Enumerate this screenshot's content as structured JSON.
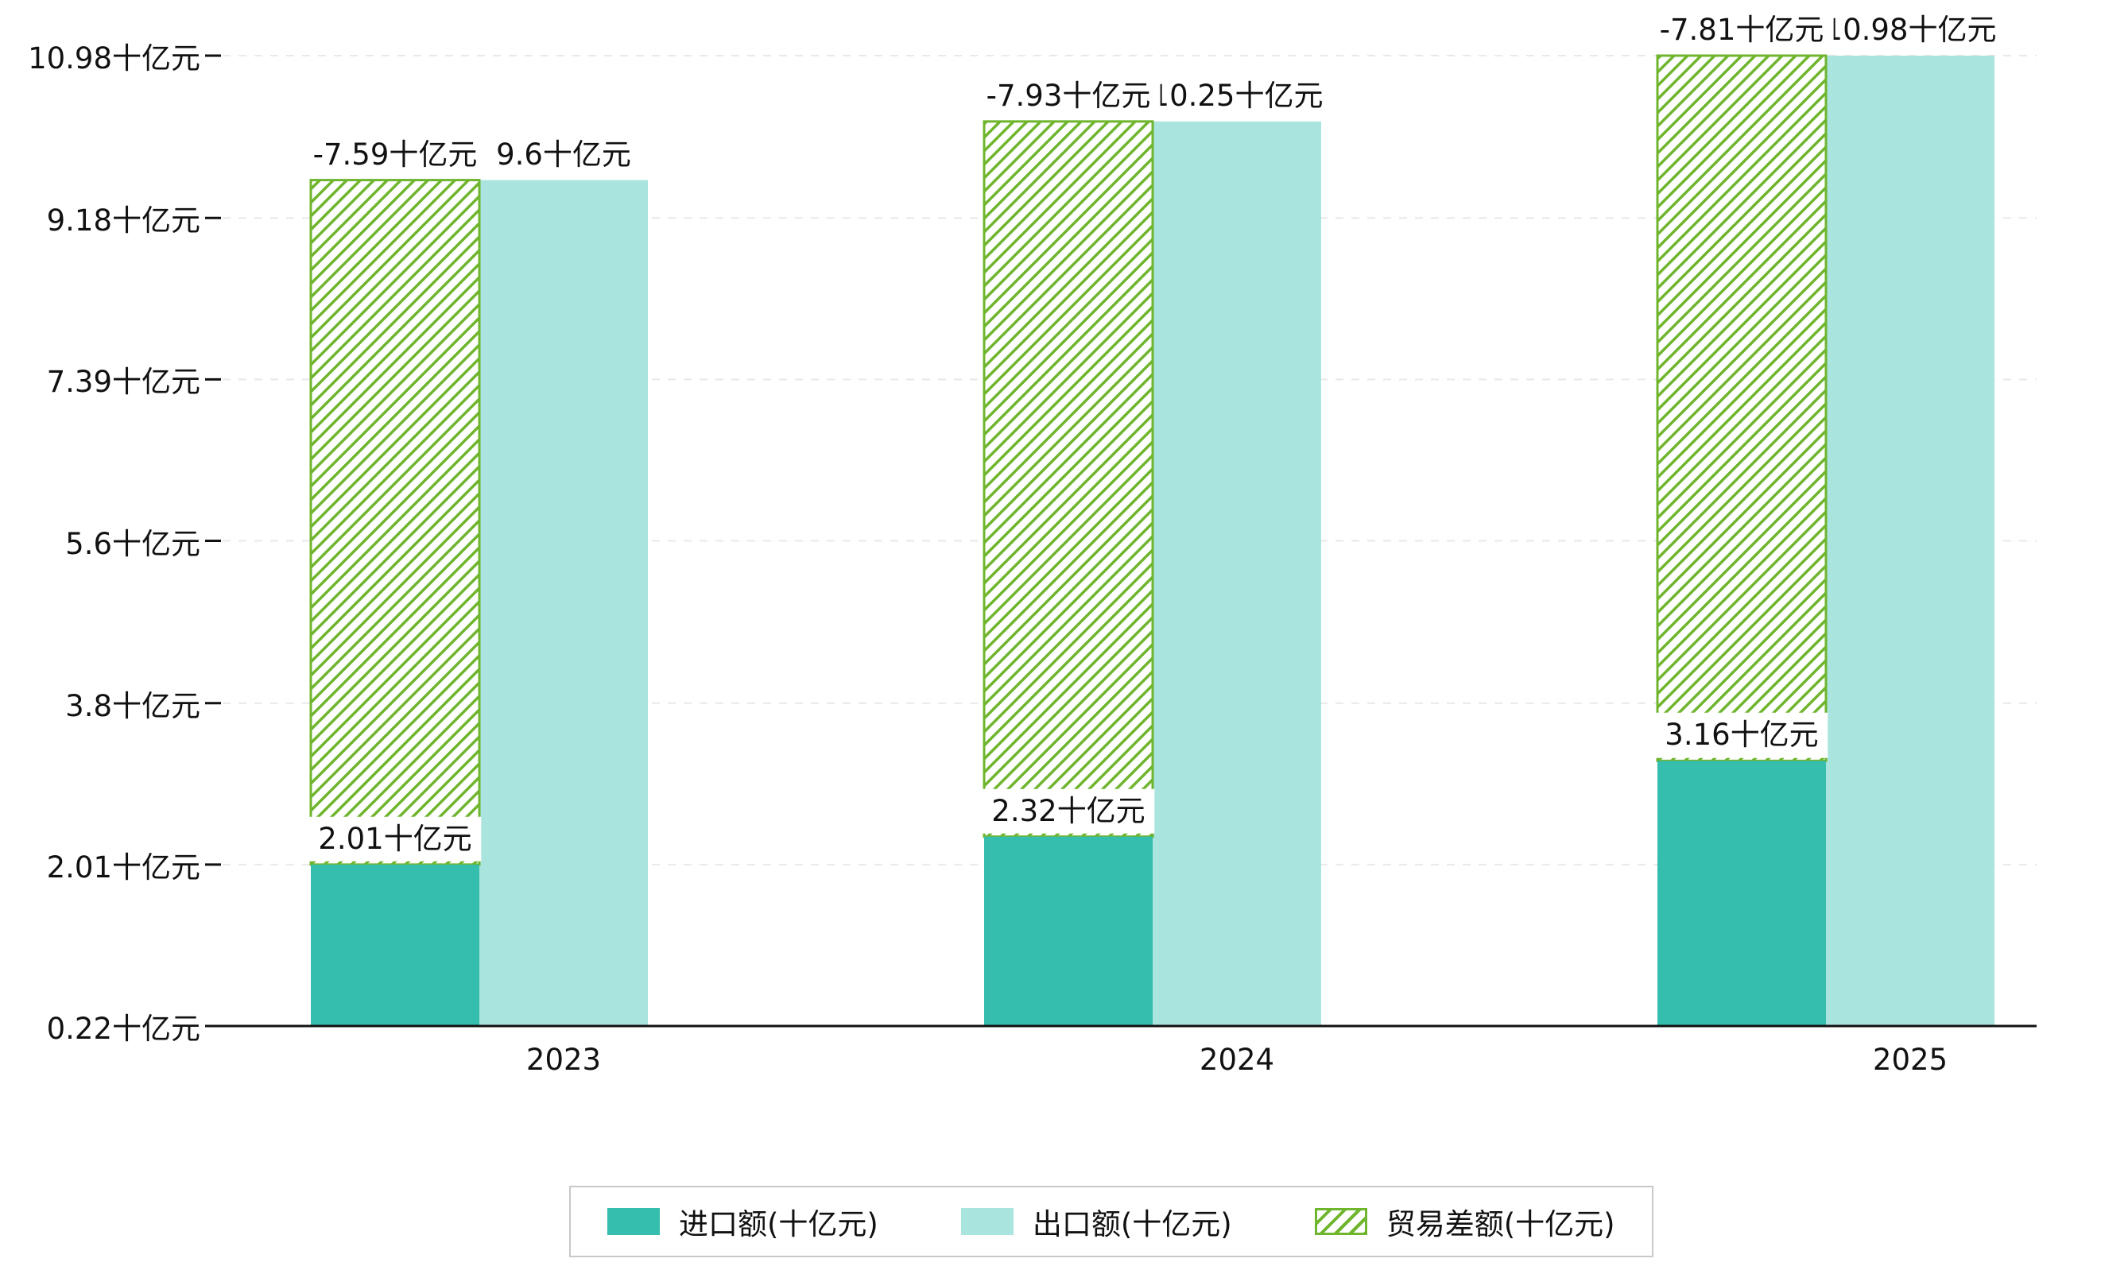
{
  "chart_data": {
    "type": "bar",
    "title": "",
    "categories": [
      "2023",
      "2024",
      "2025"
    ],
    "series": [
      {
        "name": "进口额(十亿元)",
        "key": "import",
        "color": "#35bdad",
        "values": [
          2.01,
          2.32,
          3.16
        ],
        "value_labels": [
          "2.01十亿元",
          "2.32十亿元",
          "3.16十亿元"
        ]
      },
      {
        "name": "出口额(十亿元)",
        "key": "export",
        "color": "#a9e4de",
        "values": [
          9.6,
          10.25,
          10.98
        ],
        "value_labels": [
          "9.6十亿元",
          "10.25十亿元",
          "10.98十亿元"
        ]
      },
      {
        "name": "贸易差额(十亿元)",
        "key": "balance",
        "style": "hatched",
        "color": "#6fb52e",
        "values": [
          -7.59,
          -7.93,
          -7.81
        ],
        "value_labels": [
          "-7.59十亿元",
          "-7.93十亿元",
          "-7.81十亿元"
        ],
        "spans_from_series": "import",
        "spans_to_series": "export"
      }
    ],
    "y_ticks": [
      0.22,
      2.01,
      3.8,
      5.6,
      7.39,
      9.18,
      10.98
    ],
    "y_tick_labels": [
      "0.22十亿元",
      "2.01十亿元",
      "3.8十亿元",
      "5.6十亿元",
      "7.39十亿元",
      "9.18十亿元",
      "10.98十亿元"
    ],
    "ylim": [
      0.22,
      10.98
    ],
    "unit": "十亿元",
    "grid": true,
    "legend_position": "bottom"
  },
  "colors": {
    "axis": "#111111",
    "grid": "#e9e9e9",
    "label_background": "#ffffff",
    "legend_border": "#c9c9c9",
    "background": "#ffffff"
  }
}
